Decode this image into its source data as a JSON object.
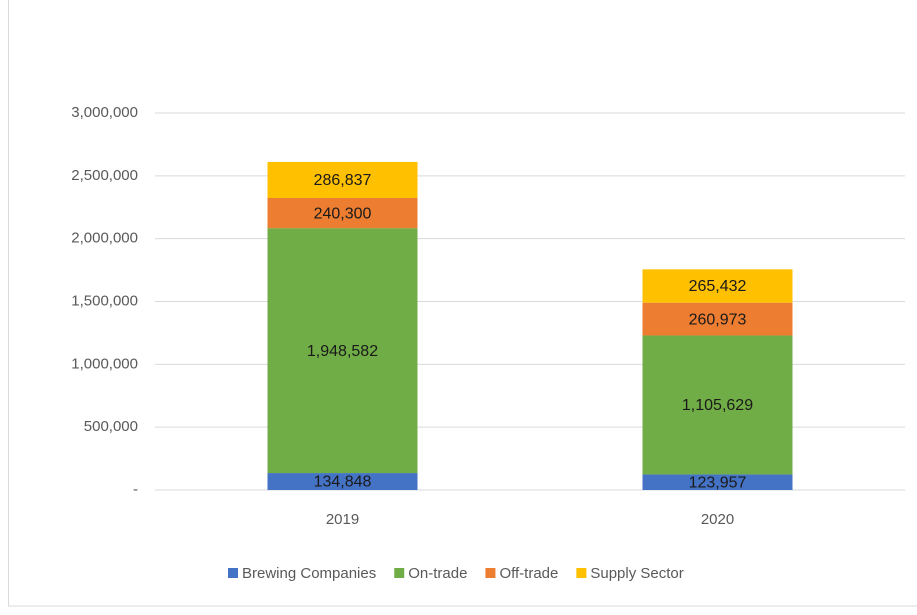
{
  "chart_data": {
    "type": "stacked_bar",
    "categories": [
      "2019",
      "2020"
    ],
    "series": [
      {
        "name": "Brewing Companies",
        "color": "#4472c4",
        "values": [
          134848,
          123957
        ],
        "value_labels": [
          "134,848",
          "123,957"
        ]
      },
      {
        "name": "On-trade",
        "color": "#70ad47",
        "values": [
          1948582,
          1105629
        ],
        "value_labels": [
          "1,948,582",
          "1,105,629"
        ]
      },
      {
        "name": "Off-trade",
        "color": "#ed7d31",
        "values": [
          240300,
          260973
        ],
        "value_labels": [
          "240,300",
          "260,973"
        ]
      },
      {
        "name": "Supply Sector",
        "color": "#ffc000",
        "values": [
          286837,
          265432
        ],
        "value_labels": [
          "286,837",
          "265,432"
        ]
      }
    ],
    "ylim": [
      0,
      3000000
    ],
    "yticks": [
      {
        "value": 0,
        "label": "-"
      },
      {
        "value": 500000,
        "label": "500,000"
      },
      {
        "value": 1000000,
        "label": "1,000,000"
      },
      {
        "value": 1500000,
        "label": "1,500,000"
      },
      {
        "value": 2000000,
        "label": "2,000,000"
      },
      {
        "value": 2500000,
        "label": "2,500,000"
      },
      {
        "value": 3000000,
        "label": "3,000,000"
      }
    ],
    "grid": true,
    "legend": "bottom"
  }
}
